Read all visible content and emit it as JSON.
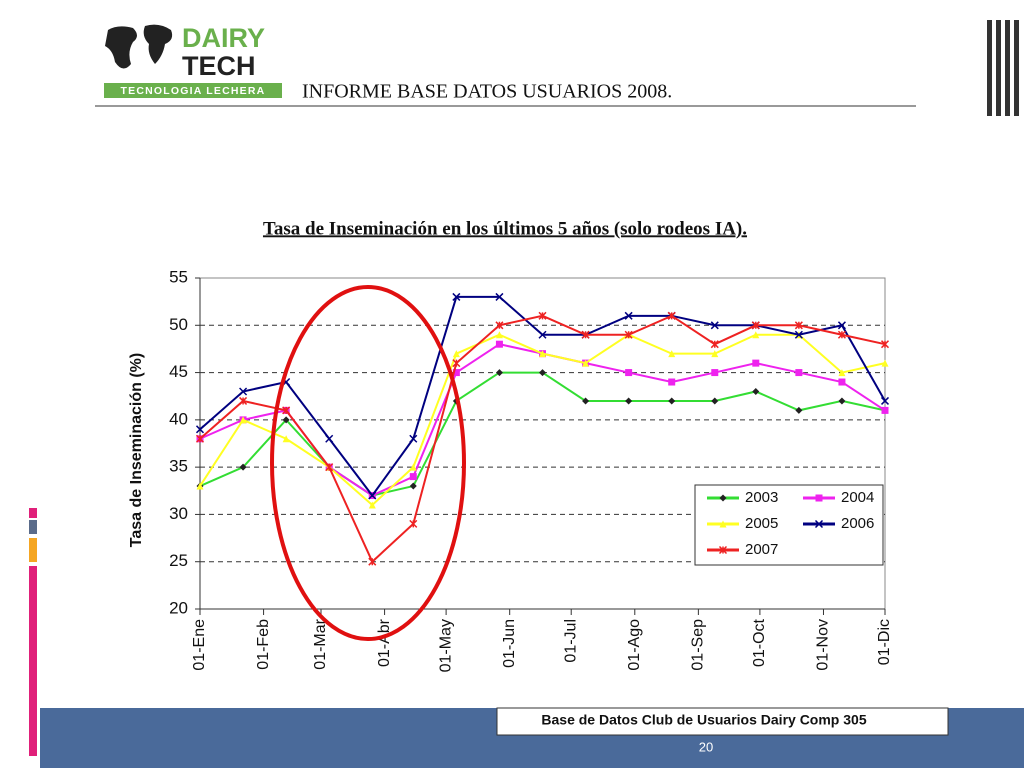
{
  "header": {
    "brand": "DAIRY",
    "brand2": "TECH",
    "tagline": "TECNOLOGIA LECHERA",
    "title": "INFORME BASE DATOS USUARIOS 2008."
  },
  "chart_data": {
    "type": "line",
    "title": "Tasa de Inseminación en los últimos 5 años (solo rodeos IA).",
    "y_label": "Tasa de Inseminación (%)",
    "x": [
      0,
      21,
      42,
      63,
      84,
      104,
      125,
      146,
      167,
      188,
      209,
      230,
      251,
      271,
      292,
      313,
      334
    ],
    "xlim": [
      0,
      334
    ],
    "xticks": [
      {
        "value": 0,
        "label": "01-Ene"
      },
      {
        "value": 31,
        "label": "01-Feb"
      },
      {
        "value": 59,
        "label": "01-Mar"
      },
      {
        "value": 90,
        "label": "01-Abr"
      },
      {
        "value": 120,
        "label": "01-May"
      },
      {
        "value": 151,
        "label": "01-Jun"
      },
      {
        "value": 181,
        "label": "01-Jul"
      },
      {
        "value": 212,
        "label": "01-Ago"
      },
      {
        "value": 243,
        "label": "01-Sep"
      },
      {
        "value": 273,
        "label": "01-Oct"
      },
      {
        "value": 304,
        "label": "01-Nov"
      },
      {
        "value": 334,
        "label": "01-Dic"
      }
    ],
    "ylim": [
      20,
      55
    ],
    "yticks": [
      20,
      25,
      30,
      35,
      40,
      45,
      50,
      55
    ],
    "grid": true,
    "legend": "lower right",
    "series": [
      {
        "name": "2003",
        "color": "#33dd33",
        "marker": "diamond",
        "values": [
          33,
          35,
          40,
          35,
          32,
          33,
          42,
          45,
          45,
          42,
          42,
          42,
          42,
          43,
          41,
          42,
          41
        ]
      },
      {
        "name": "2004",
        "color": "#ee22ee",
        "marker": "square",
        "values": [
          38,
          40,
          41,
          35,
          32,
          34,
          45,
          48,
          47,
          46,
          45,
          44,
          45,
          46,
          45,
          44,
          41
        ]
      },
      {
        "name": "2005",
        "color": "#ffff22",
        "marker": "triangle",
        "values": [
          33,
          40,
          38,
          35,
          31,
          35,
          47,
          49,
          47,
          46,
          49,
          47,
          47,
          49,
          49,
          45,
          46
        ]
      },
      {
        "name": "2006",
        "color": "#000080",
        "marker": "x",
        "values": [
          39,
          43,
          44,
          38,
          32,
          38,
          53,
          53,
          49,
          49,
          51,
          51,
          50,
          50,
          49,
          50,
          42
        ]
      },
      {
        "name": "2007",
        "color": "#ee2222",
        "marker": "star",
        "values": [
          38,
          42,
          41,
          35,
          25,
          29,
          46,
          50,
          51,
          49,
          49,
          51,
          48,
          50,
          50,
          49,
          48
        ]
      }
    ]
  },
  "footer": {
    "text": "Base de Datos Club de Usuarios Dairy Comp 305",
    "page": "20"
  }
}
